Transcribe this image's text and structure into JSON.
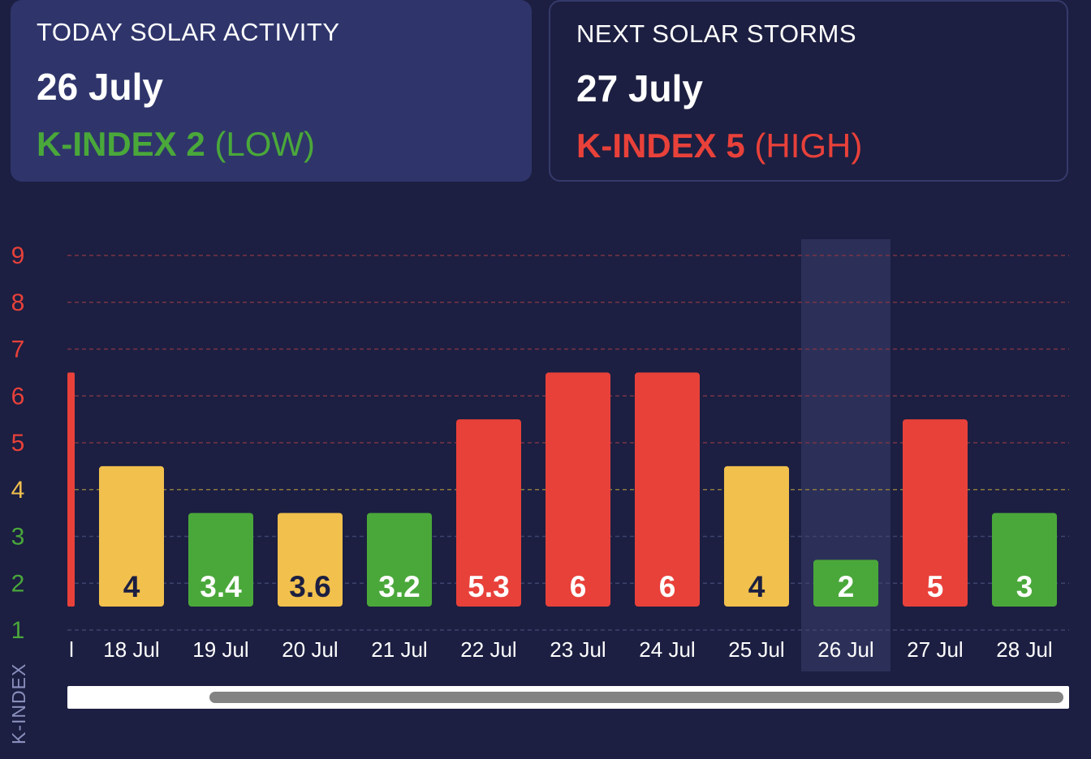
{
  "today": {
    "label": "TODAY SOLAR ACTIVITY",
    "date": "26 July",
    "kindex_label": "K-INDEX 2",
    "kindex_level": "(LOW)",
    "color": "#4aa83a"
  },
  "next": {
    "label": "NEXT SOLAR STORMS",
    "date": "27 July",
    "kindex_label": "K-INDEX 5",
    "kindex_level": "(HIGH)",
    "color": "#e8413a"
  },
  "chart_data": {
    "type": "bar",
    "ylabel": "K-INDEX",
    "yticks": [
      1,
      2,
      3,
      4,
      5,
      6,
      7,
      8,
      9
    ],
    "ytick_colors": [
      "#4aa83a",
      "#4aa83a",
      "#4aa83a",
      "#f1c04d",
      "#e8413a",
      "#e8413a",
      "#e8413a",
      "#e8413a",
      "#e8413a"
    ],
    "ylim": [
      1,
      9
    ],
    "grid": true,
    "highlight_category": "26 Jul",
    "partial_category": {
      "label": "l",
      "value": 6,
      "color": "#e8413a"
    },
    "categories": [
      "18 Jul",
      "19 Jul",
      "20 Jul",
      "21 Jul",
      "22 Jul",
      "23 Jul",
      "24 Jul",
      "25 Jul",
      "26 Jul",
      "27 Jul",
      "28 Jul"
    ],
    "values": [
      4,
      3.4,
      3.6,
      3.2,
      5.3,
      6,
      6,
      4,
      2,
      5,
      3
    ],
    "value_labels": [
      "4",
      "3.4",
      "3.6",
      "3.2",
      "5.3",
      "6",
      "6",
      "4",
      "2",
      "5",
      "3"
    ],
    "colors": [
      "#f1c04d",
      "#4aa83a",
      "#f1c04d",
      "#4aa83a",
      "#e8413a",
      "#e8413a",
      "#e8413a",
      "#f1c04d",
      "#4aa83a",
      "#e8413a",
      "#4aa83a"
    ]
  }
}
